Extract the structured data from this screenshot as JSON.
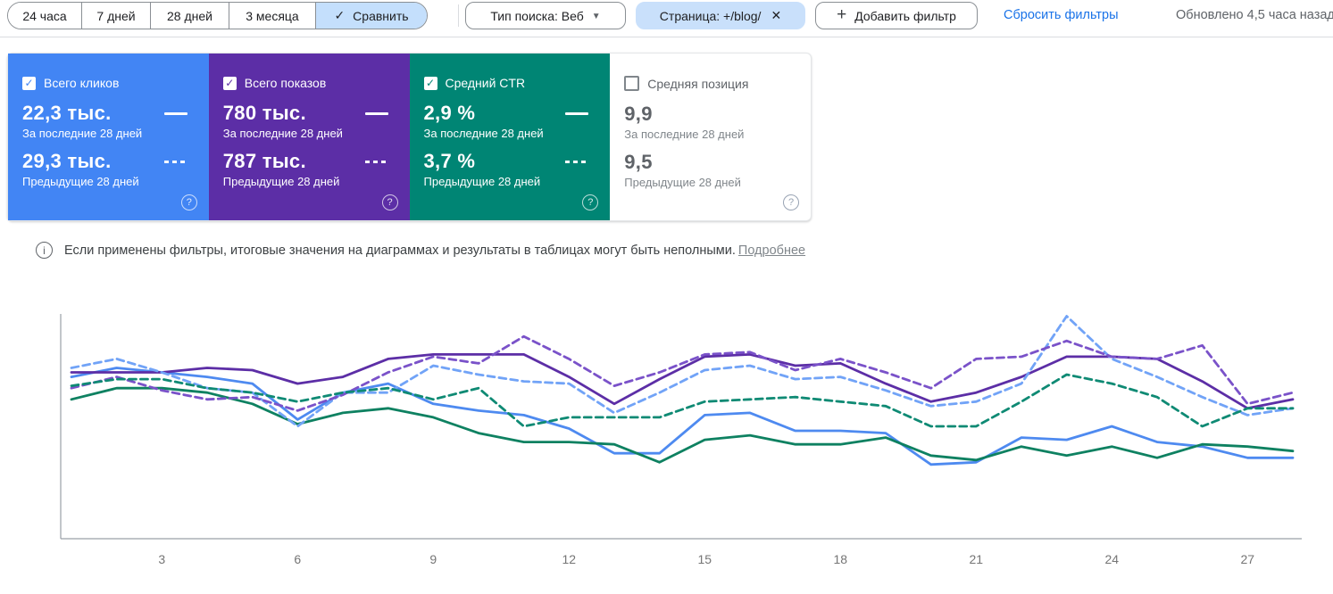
{
  "toolbar": {
    "date_ranges": [
      {
        "label": "24 часа",
        "selected": false
      },
      {
        "label": "7 дней",
        "selected": false
      },
      {
        "label": "28 дней",
        "selected": false
      },
      {
        "label": "3 месяца",
        "selected": false
      },
      {
        "label": "Сравнить",
        "selected": true,
        "check_glyph": "✓"
      }
    ],
    "search_type_chip": {
      "label": "Тип поиска: Веб",
      "caret_glyph": "▼"
    },
    "page_filter_chip": {
      "label": "Страница: +/blog/",
      "close_glyph": "✕"
    },
    "add_filter_chip": {
      "label": "Добавить фильтр",
      "plus_glyph": "+"
    },
    "reset_filters": "Сбросить фильтры",
    "updated_status": "Обновлено 4,5 часа назад"
  },
  "cards": [
    {
      "metric": "Всего кликов",
      "checked": true,
      "color": "#4285f4",
      "current_value": "22,3 тыс.",
      "current_caption": "За последние 28 дней",
      "previous_value": "29,3 тыс.",
      "previous_caption": "Предыдущие 28 дней",
      "help_glyph": "?"
    },
    {
      "metric": "Всего показов",
      "checked": true,
      "color": "#5c2ea6",
      "current_value": "780 тыс.",
      "current_caption": "За последние 28 дней",
      "previous_value": "787 тыс.",
      "previous_caption": "Предыдущие 28 дней",
      "help_glyph": "?"
    },
    {
      "metric": "Средний CTR",
      "checked": true,
      "color": "#008574",
      "current_value": "2,9 %",
      "current_caption": "За последние 28 дней",
      "previous_value": "3,7 %",
      "previous_caption": "Предыдущие 28 дней",
      "help_glyph": "?"
    },
    {
      "metric": "Средняя позиция",
      "checked": false,
      "color": "#ffffff",
      "current_value": "9,9",
      "current_caption": "За последние 28 дней",
      "previous_value": "9,5",
      "previous_caption": "Предыдущие 28 дней",
      "help_glyph": "?"
    }
  ],
  "banner": {
    "text": "Если применены фильтры, итоговые значения на диаграммах и результаты в таблицах могут быть неполными.",
    "link": "Подробнее"
  },
  "chart_data": {
    "type": "line",
    "x_range": [
      1,
      28
    ],
    "x_ticks": [
      3,
      6,
      9,
      12,
      15,
      18,
      21,
      24,
      27
    ],
    "grid": false,
    "legend_position": "encoded in metric cards above (solid = last 28 days, dashed = previous 28 days)",
    "y_units": "relative 0–100 of plot height (y-axis is unlabeled in the UI; clicks / impressions / CTR are each auto-scaled)",
    "series": [
      {
        "name": "Всего кликов — за последние 28 дней",
        "style": "solid",
        "color": "#4e8af0",
        "values": [
          72,
          76,
          74,
          72,
          69,
          53,
          65,
          69,
          60,
          57,
          55,
          49,
          38,
          38,
          55,
          56,
          48,
          48,
          47,
          33,
          34,
          45,
          44,
          50,
          43,
          41,
          36,
          36
        ]
      },
      {
        "name": "Всего кликов — предыдущие 28 дней",
        "style": "dashed",
        "color": "#71a3f7",
        "values": [
          76,
          80,
          74,
          67,
          65,
          50,
          65,
          65,
          77,
          73,
          70,
          69,
          56,
          65,
          75,
          77,
          71,
          72,
          66,
          59,
          61,
          69,
          99,
          80,
          72,
          63,
          55,
          58
        ]
      },
      {
        "name": "Всего показов — за последние 28 дней",
        "style": "solid",
        "color": "#5c2ea6",
        "values": [
          74,
          74,
          74,
          76,
          75,
          69,
          72,
          80,
          82,
          82,
          82,
          72,
          60,
          71,
          81,
          82,
          77,
          78,
          69,
          61,
          65,
          72,
          81,
          81,
          80,
          70,
          58,
          62
        ]
      },
      {
        "name": "Всего показов — предыдущие 28 дней",
        "style": "dashed",
        "color": "#7a52c9",
        "values": [
          67,
          72,
          66,
          62,
          63,
          57,
          64,
          74,
          81,
          78,
          90,
          80,
          68,
          74,
          82,
          83,
          75,
          80,
          74,
          67,
          80,
          81,
          88,
          81,
          80,
          86,
          60,
          65
        ]
      },
      {
        "name": "Средний CTR — за последние 28 дней",
        "style": "solid",
        "color": "#0e8161",
        "values": [
          62,
          67,
          67,
          65,
          60,
          51,
          56,
          58,
          54,
          47,
          43,
          43,
          42,
          34,
          44,
          46,
          42,
          42,
          45,
          37,
          35,
          41,
          37,
          41,
          36,
          42,
          41,
          39
        ]
      },
      {
        "name": "Средний CTR — предыдущие 28 дней",
        "style": "dashed",
        "color": "#0f8a74",
        "values": [
          68,
          71,
          71,
          67,
          65,
          61,
          65,
          67,
          62,
          67,
          50,
          54,
          54,
          54,
          61,
          62,
          63,
          61,
          59,
          50,
          50,
          61,
          73,
          69,
          63,
          50,
          58,
          58
        ]
      }
    ]
  }
}
